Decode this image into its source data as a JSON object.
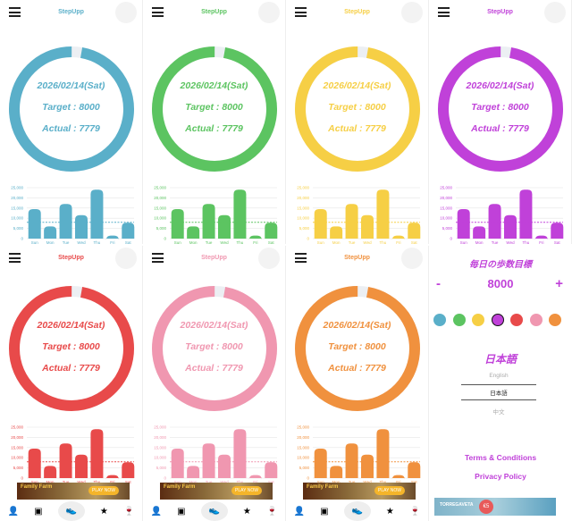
{
  "app_title": "StepUpp",
  "date": "2026/02/14(Sat)",
  "target_text": "Target : 8000",
  "actual_text": "Actual : 7779",
  "themes": [
    "#5aafc9",
    "#5cc461",
    "#f6cf45",
    "#c041d9",
    "#e84a4a",
    "#f097b0",
    "#f0913e"
  ],
  "chart_data": {
    "type": "bar",
    "categories": [
      "Sun",
      "Mon",
      "Tue",
      "Wed",
      "Thu",
      "Fri",
      "Sat"
    ],
    "values": [
      14500,
      6000,
      17000,
      11500,
      24000,
      1500,
      7779
    ],
    "target_line": 8000,
    "ylim": [
      0,
      25000
    ],
    "yticks": [
      "0",
      "5,000",
      "10,000",
      "15,000",
      "20,000",
      "25,000"
    ],
    "grid": true
  },
  "ad": {
    "title": "Family Farm",
    "button": "PLAY NOW"
  },
  "nav": [
    "person-icon",
    "news-icon",
    "shoe-icon",
    "star-icon",
    "trophy-icon"
  ],
  "settings": {
    "heading": "毎日の歩数目標",
    "goal": "8000",
    "minus": "-",
    "plus": "+",
    "language_title": "日本語",
    "languages": [
      "English",
      "日本語",
      "中文"
    ],
    "selected_color": "#c041d9",
    "terms": "Terms & Conditions",
    "privacy": "Privacy Policy",
    "ad_text": "TORREGAVETA",
    "ad_price": "€5"
  }
}
